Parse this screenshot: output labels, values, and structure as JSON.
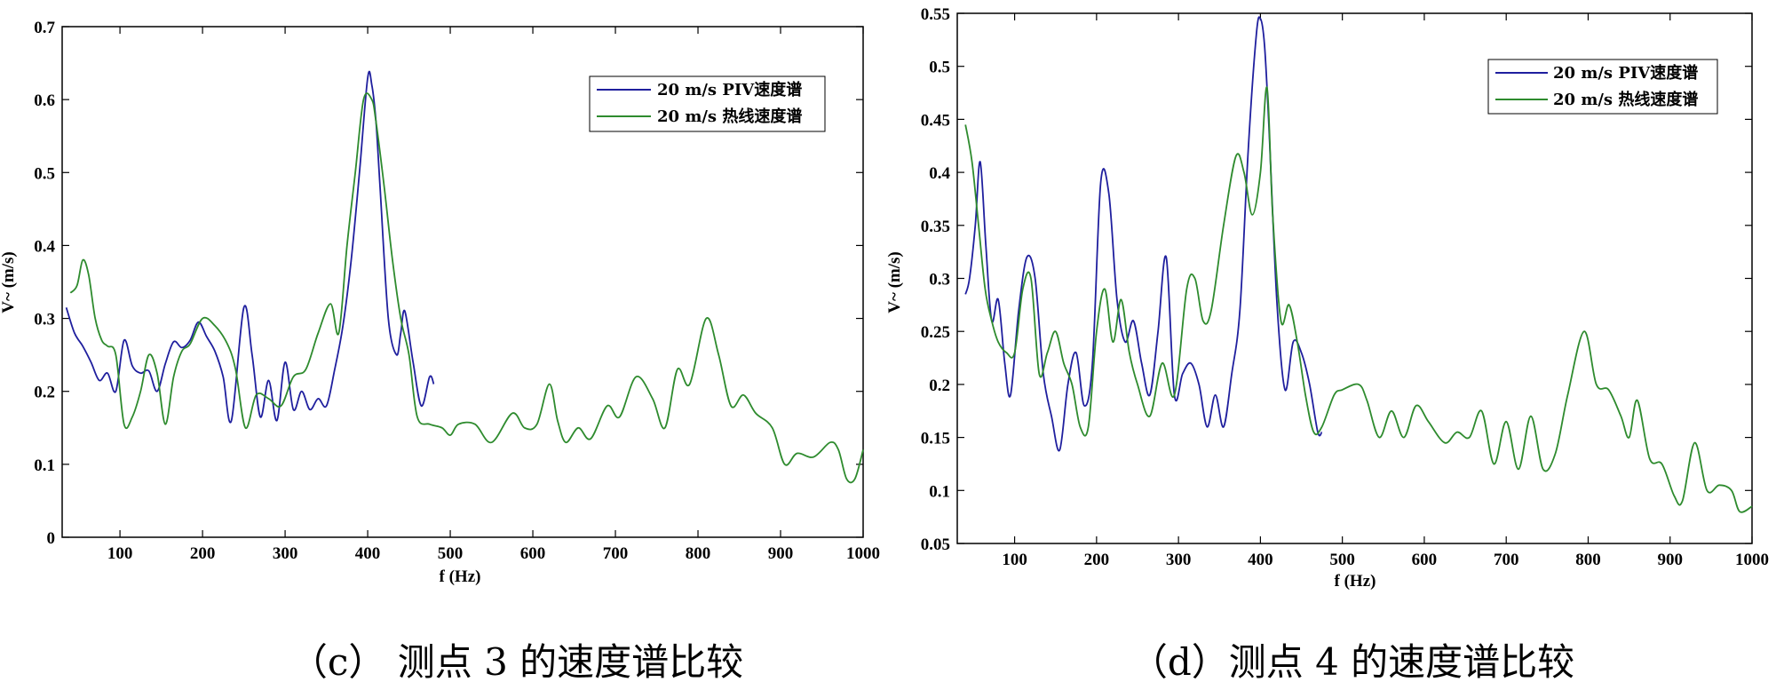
{
  "colors": {
    "piv": "#1f1f9e",
    "hotwire": "#2e8b2e",
    "axis": "#000000"
  },
  "chart_data": [
    {
      "type": "line",
      "caption": "（c） 测点 3 的速度谱比较",
      "xlabel": "f (Hz)",
      "ylabel": "V~ (m/s)",
      "xlim": [
        30,
        1000
      ],
      "ylim": [
        0,
        0.7
      ],
      "xticks": [
        100,
        200,
        300,
        400,
        500,
        600,
        700,
        800,
        900,
        1000
      ],
      "yticks": [
        0,
        0.1,
        0.2,
        0.3,
        0.4,
        0.5,
        0.6,
        0.7
      ],
      "ytick_labels": [
        "0",
        "0.1",
        "0.2",
        "0.3",
        "0.4",
        "0.5",
        "0.6",
        "0.7"
      ],
      "legend_position": "top-right",
      "series": [
        {
          "name": "20 m/s PIV速度谱",
          "color_key": "piv",
          "x": [
            35,
            45,
            55,
            65,
            75,
            85,
            95,
            105,
            115,
            125,
            135,
            145,
            155,
            165,
            175,
            185,
            195,
            205,
            215,
            225,
            235,
            250,
            260,
            270,
            280,
            290,
            300,
            310,
            320,
            330,
            340,
            350,
            360,
            370,
            380,
            390,
            400,
            405,
            410,
            415,
            425,
            435,
            440,
            445,
            455,
            465,
            475,
            480
          ],
          "y": [
            0.315,
            0.28,
            0.262,
            0.24,
            0.215,
            0.225,
            0.2,
            0.27,
            0.235,
            0.225,
            0.228,
            0.2,
            0.238,
            0.268,
            0.26,
            0.27,
            0.295,
            0.275,
            0.255,
            0.22,
            0.16,
            0.315,
            0.25,
            0.165,
            0.215,
            0.16,
            0.24,
            0.175,
            0.2,
            0.175,
            0.19,
            0.18,
            0.23,
            0.29,
            0.38,
            0.5,
            0.63,
            0.62,
            0.57,
            0.48,
            0.3,
            0.25,
            0.28,
            0.31,
            0.24,
            0.18,
            0.22,
            0.21
          ]
        },
        {
          "name": "20 m/s 热线速度谱",
          "color_key": "hotwire",
          "x": [
            40,
            48,
            55,
            62,
            70,
            78,
            85,
            95,
            105,
            115,
            125,
            135,
            145,
            155,
            165,
            175,
            185,
            200,
            215,
            230,
            240,
            252,
            265,
            280,
            295,
            310,
            325,
            340,
            355,
            365,
            375,
            385,
            395,
            405,
            410,
            420,
            430,
            440,
            450,
            460,
            475,
            490,
            500,
            510,
            530,
            550,
            575,
            590,
            605,
            620,
            630,
            640,
            655,
            670,
            690,
            705,
            725,
            745,
            760,
            775,
            790,
            810,
            825,
            840,
            855,
            870,
            890,
            905,
            920,
            940,
            960,
            970,
            980,
            990,
            1000
          ],
          "y": [
            0.335,
            0.345,
            0.38,
            0.36,
            0.3,
            0.27,
            0.262,
            0.25,
            0.155,
            0.165,
            0.2,
            0.25,
            0.225,
            0.155,
            0.22,
            0.255,
            0.265,
            0.3,
            0.29,
            0.265,
            0.23,
            0.15,
            0.195,
            0.19,
            0.18,
            0.22,
            0.23,
            0.28,
            0.32,
            0.28,
            0.4,
            0.5,
            0.6,
            0.6,
            0.57,
            0.48,
            0.38,
            0.3,
            0.25,
            0.165,
            0.155,
            0.15,
            0.14,
            0.155,
            0.155,
            0.13,
            0.17,
            0.15,
            0.155,
            0.21,
            0.16,
            0.13,
            0.15,
            0.135,
            0.18,
            0.165,
            0.22,
            0.19,
            0.15,
            0.23,
            0.21,
            0.3,
            0.25,
            0.18,
            0.195,
            0.17,
            0.15,
            0.1,
            0.115,
            0.11,
            0.13,
            0.12,
            0.08,
            0.08,
            0.12
          ]
        }
      ]
    },
    {
      "type": "line",
      "caption": "（d）测点 4 的速度谱比较",
      "xlabel": "f (Hz)",
      "ylabel": "V~ (m/s)",
      "xlim": [
        30,
        1000
      ],
      "ylim": [
        0.05,
        0.55
      ],
      "xticks": [
        100,
        200,
        300,
        400,
        500,
        600,
        700,
        800,
        900,
        1000
      ],
      "yticks": [
        0.05,
        0.1,
        0.15,
        0.2,
        0.25,
        0.3,
        0.35,
        0.4,
        0.45,
        0.5,
        0.55
      ],
      "ytick_labels": [
        "0.05",
        "0.1",
        "0.15",
        "0.2",
        "0.25",
        "0.3",
        "0.35",
        "0.4",
        "0.45",
        "0.5",
        "0.55"
      ],
      "legend_position": "top-right",
      "series": [
        {
          "name": "20 m/s PIV速度谱",
          "color_key": "piv",
          "x": [
            40,
            45,
            52,
            58,
            65,
            72,
            80,
            88,
            95,
            105,
            115,
            125,
            135,
            145,
            155,
            165,
            175,
            185,
            195,
            205,
            215,
            225,
            235,
            245,
            255,
            265,
            275,
            285,
            295,
            305,
            315,
            325,
            335,
            345,
            355,
            365,
            375,
            385,
            395,
            400,
            405,
            410,
            420,
            430,
            440,
            450,
            460,
            470,
            475
          ],
          "y": [
            0.285,
            0.3,
            0.35,
            0.41,
            0.33,
            0.26,
            0.28,
            0.22,
            0.19,
            0.27,
            0.32,
            0.3,
            0.21,
            0.17,
            0.138,
            0.2,
            0.23,
            0.18,
            0.22,
            0.39,
            0.38,
            0.28,
            0.24,
            0.26,
            0.22,
            0.19,
            0.25,
            0.32,
            0.19,
            0.21,
            0.22,
            0.2,
            0.16,
            0.19,
            0.16,
            0.21,
            0.27,
            0.42,
            0.53,
            0.545,
            0.52,
            0.45,
            0.28,
            0.195,
            0.24,
            0.23,
            0.2,
            0.155,
            0.155
          ]
        },
        {
          "name": "20 m/s 热线速度谱",
          "color_key": "hotwire",
          "x": [
            40,
            48,
            56,
            64,
            72,
            80,
            90,
            100,
            110,
            120,
            130,
            140,
            150,
            160,
            170,
            180,
            190,
            200,
            210,
            220,
            230,
            240,
            250,
            265,
            280,
            295,
            310,
            320,
            330,
            340,
            355,
            370,
            380,
            390,
            400,
            408,
            415,
            425,
            435,
            445,
            455,
            465,
            475,
            490,
            500,
            520,
            530,
            545,
            560,
            575,
            590,
            605,
            625,
            640,
            655,
            670,
            685,
            700,
            715,
            730,
            745,
            760,
            775,
            795,
            810,
            825,
            840,
            850,
            860,
            875,
            890,
            905,
            915,
            930,
            945,
            960,
            975,
            985,
            1000
          ],
          "y": [
            0.445,
            0.41,
            0.35,
            0.29,
            0.26,
            0.24,
            0.23,
            0.23,
            0.29,
            0.3,
            0.21,
            0.23,
            0.25,
            0.22,
            0.2,
            0.16,
            0.16,
            0.25,
            0.29,
            0.24,
            0.28,
            0.23,
            0.2,
            0.17,
            0.22,
            0.19,
            0.29,
            0.3,
            0.26,
            0.27,
            0.35,
            0.415,
            0.4,
            0.36,
            0.4,
            0.48,
            0.36,
            0.26,
            0.275,
            0.24,
            0.19,
            0.155,
            0.16,
            0.19,
            0.195,
            0.2,
            0.185,
            0.15,
            0.175,
            0.15,
            0.18,
            0.165,
            0.145,
            0.155,
            0.15,
            0.175,
            0.125,
            0.165,
            0.12,
            0.17,
            0.12,
            0.135,
            0.19,
            0.25,
            0.2,
            0.195,
            0.17,
            0.15,
            0.185,
            0.13,
            0.125,
            0.095,
            0.09,
            0.145,
            0.1,
            0.105,
            0.1,
            0.08,
            0.085
          ]
        }
      ]
    }
  ]
}
